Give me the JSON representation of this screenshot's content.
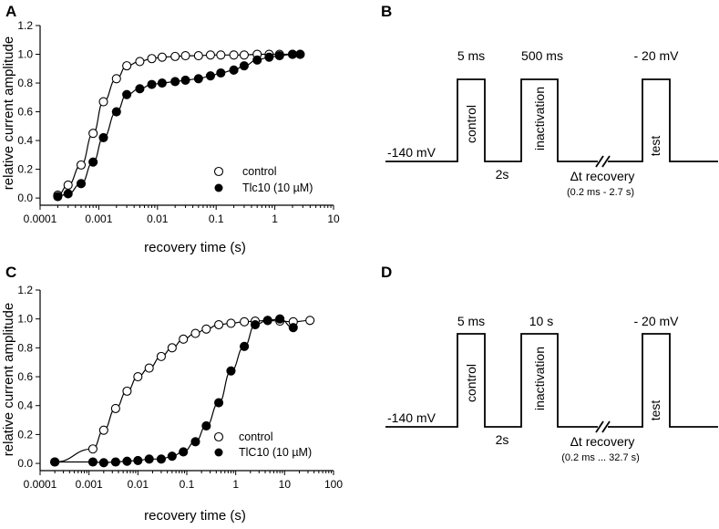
{
  "panel_labels": {
    "a": "A",
    "b": "B",
    "c": "C",
    "d": "D"
  },
  "chart_data": [
    {
      "id": "A",
      "type": "scatter",
      "xscale": "log",
      "xlim": [
        0.0001,
        10
      ],
      "ylim": [
        -0.05,
        1.2
      ],
      "xticks": [
        "0.0001",
        "0.001",
        "0.01",
        "0.1",
        "1",
        "10"
      ],
      "yticks": [
        "0.0",
        "0.2",
        "0.4",
        "0.6",
        "0.8",
        "1.0",
        "1.2"
      ],
      "xlabel": "recovery time (s)",
      "ylabel": "relative current amplitude",
      "legend": [
        "control",
        "Tlc10 (10 µM)"
      ],
      "legend_position": "bottom-right",
      "series": [
        {
          "name": "control",
          "marker": "open-circle",
          "x": [
            0.0002,
            0.0003,
            0.0005,
            0.0008,
            0.0012,
            0.002,
            0.003,
            0.005,
            0.008,
            0.012,
            0.02,
            0.03,
            0.05,
            0.08,
            0.12,
            0.2,
            0.3,
            0.5,
            0.8,
            1.2,
            2,
            2.7
          ],
          "y": [
            0.02,
            0.09,
            0.23,
            0.45,
            0.67,
            0.83,
            0.92,
            0.95,
            0.97,
            0.98,
            0.985,
            0.99,
            0.99,
            0.995,
            0.995,
            0.995,
            0.995,
            1.0,
            1.0,
            1.0,
            1.0,
            1.0
          ]
        },
        {
          "name": "Tlc10 (10 µM)",
          "marker": "filled-circle",
          "x": [
            0.0002,
            0.0003,
            0.0005,
            0.0008,
            0.0012,
            0.002,
            0.003,
            0.005,
            0.008,
            0.012,
            0.02,
            0.03,
            0.05,
            0.08,
            0.12,
            0.2,
            0.3,
            0.5,
            0.8,
            1.2,
            2,
            2.7
          ],
          "y": [
            0.01,
            0.03,
            0.1,
            0.25,
            0.42,
            0.6,
            0.72,
            0.76,
            0.79,
            0.8,
            0.81,
            0.82,
            0.83,
            0.85,
            0.87,
            0.89,
            0.92,
            0.96,
            0.98,
            0.99,
            1.0,
            1.0
          ]
        }
      ]
    },
    {
      "id": "C",
      "type": "scatter",
      "xscale": "log",
      "xlim": [
        0.0001,
        100
      ],
      "ylim": [
        -0.05,
        1.2
      ],
      "xticks": [
        "0.0001",
        "0.001",
        "0.01",
        "0.1",
        "1",
        "10",
        "100"
      ],
      "yticks": [
        "0.0",
        "0.2",
        "0.4",
        "0.6",
        "0.8",
        "1.0",
        "1.2"
      ],
      "xlabel": "recovery time (s)",
      "ylabel": "relative current amplitude",
      "legend": [
        "control",
        "TlC10 (10 µM)"
      ],
      "legend_position": "bottom-right",
      "series": [
        {
          "name": "control",
          "marker": "open-circle",
          "x": [
            0.0002,
            0.0012,
            0.002,
            0.0035,
            0.006,
            0.01,
            0.017,
            0.03,
            0.05,
            0.085,
            0.15,
            0.25,
            0.45,
            0.8,
            1.5,
            2.5,
            4.5,
            8,
            15,
            33
          ],
          "y": [
            0.01,
            0.1,
            0.23,
            0.38,
            0.5,
            0.6,
            0.66,
            0.74,
            0.8,
            0.86,
            0.9,
            0.93,
            0.96,
            0.97,
            0.98,
            0.985,
            0.99,
            0.985,
            0.98,
            0.99
          ]
        },
        {
          "name": "TlC10 (10 µM)",
          "marker": "filled-circle",
          "x": [
            0.0002,
            0.0012,
            0.002,
            0.0035,
            0.006,
            0.01,
            0.017,
            0.03,
            0.05,
            0.085,
            0.15,
            0.25,
            0.45,
            0.8,
            1.5,
            2.5,
            4.5,
            8,
            15
          ],
          "y": [
            0.01,
            0.01,
            0.005,
            0.01,
            0.015,
            0.02,
            0.03,
            0.03,
            0.05,
            0.08,
            0.15,
            0.26,
            0.42,
            0.64,
            0.81,
            0.96,
            0.99,
            1.0,
            0.94
          ]
        }
      ]
    }
  ],
  "protocols": [
    {
      "id": "B",
      "hold": "-140 mV",
      "pulse1_dur": "5 ms",
      "pulse1_label": "control",
      "gap": "2s",
      "pulse2_dur": "500 ms",
      "pulse2_label": "inactivation",
      "recovery": "Δt recovery",
      "recovery_range": "(0.2 ms - 2.7 s)",
      "test_v": "- 20 mV",
      "test_label": "test"
    },
    {
      "id": "D",
      "hold": "-140 mV",
      "pulse1_dur": "5 ms",
      "pulse1_label": "control",
      "gap": "2s",
      "pulse2_dur": "10 s",
      "pulse2_label": "inactivation",
      "recovery": "Δt recovery",
      "recovery_range": "(0.2 ms ... 32.7 s)",
      "test_v": "- 20 mV",
      "test_label": "test"
    }
  ]
}
